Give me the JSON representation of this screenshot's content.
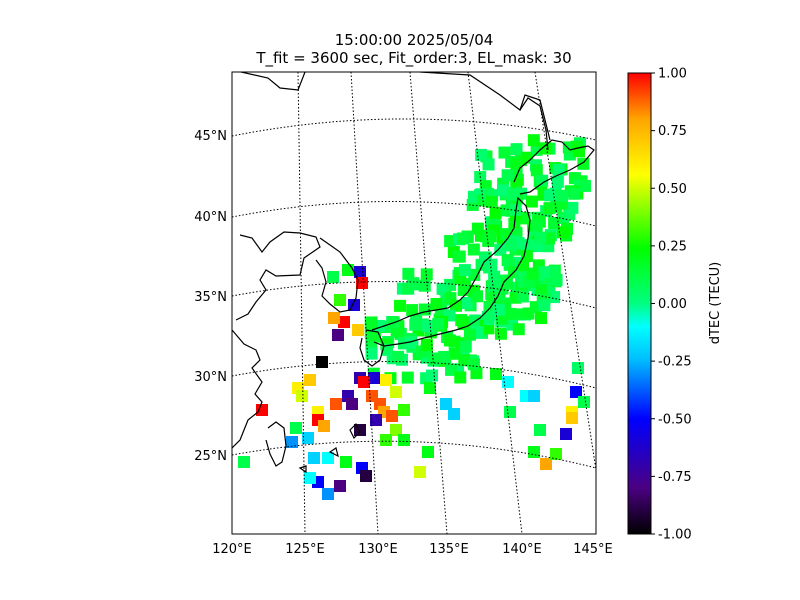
{
  "title_line1": "15:00:00 2025/05/04",
  "title_line2": "T_fit = 3600 sec, Fit_order:3, EL_mask: 30",
  "chart_data": {
    "type": "heatmap",
    "projection": "conic (Japan region map with coastlines)",
    "x_ticks": [
      "120°E",
      "125°E",
      "130°E",
      "135°E",
      "140°E",
      "145°E"
    ],
    "y_ticks": [
      "25°N",
      "30°N",
      "35°N",
      "40°N",
      "45°N"
    ],
    "lon_range": [
      120,
      145
    ],
    "lat_range": [
      20,
      48
    ],
    "grid": "dotted meridians and parallels",
    "colorbar": {
      "label": "dTEC (TECU)",
      "range": [
        -1.0,
        1.0
      ],
      "ticks": [
        "1.00",
        "0.75",
        "0.50",
        "0.25",
        "0.00",
        "-0.25",
        "-0.50",
        "-0.75",
        "-1.00"
      ],
      "colormap": "nipy_spectral-like",
      "stops": [
        "#000000",
        "#4b0082",
        "#0000ff",
        "#00bfff",
        "#00ffff",
        "#00ff7f",
        "#00ff00",
        "#7fff00",
        "#ffff00",
        "#ffa500",
        "#ff0000"
      ]
    },
    "dominant_value_over_japan_TECU": 0.05,
    "summary": "Mostly near-zero (green) dTEC over the Japanese islands; scattered strong positive (red) and negative (blue/black) values over the East China Sea, Korea Strait and Ryukyu region."
  }
}
